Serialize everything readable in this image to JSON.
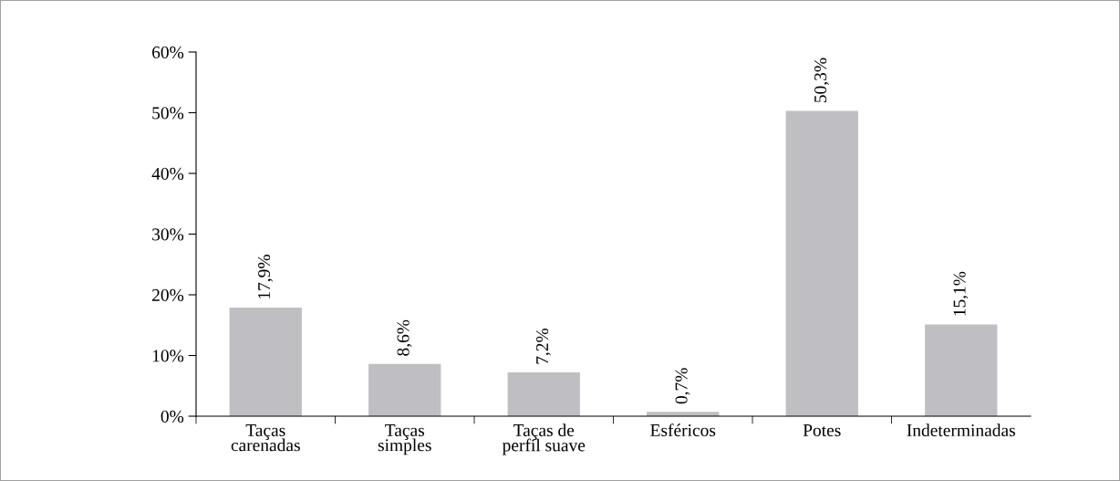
{
  "chart_data": {
    "type": "bar",
    "categories": [
      "Taças\ncarenadas",
      "Taças\nsimples",
      "Taças de\nperfil suave",
      "Esféricos",
      "Potes",
      "Indeterminadas"
    ],
    "values": [
      17.9,
      8.6,
      7.2,
      0.7,
      50.3,
      15.1
    ],
    "value_labels": [
      "17,9%",
      "8,6%",
      "7,2%",
      "0,7%",
      "50,3%",
      "15,1%"
    ],
    "color": "#bfbfc3",
    "ylim": [
      0,
      60
    ],
    "yticks": [
      {
        "value": 0,
        "label": "0%"
      },
      {
        "value": 10,
        "label": "10%"
      },
      {
        "value": 20,
        "label": "20%"
      },
      {
        "value": 30,
        "label": "30%"
      },
      {
        "value": 40,
        "label": "40%"
      },
      {
        "value": 50,
        "label": "50%"
      },
      {
        "value": 60,
        "label": "60%"
      }
    ],
    "grid": false,
    "legend": false
  }
}
